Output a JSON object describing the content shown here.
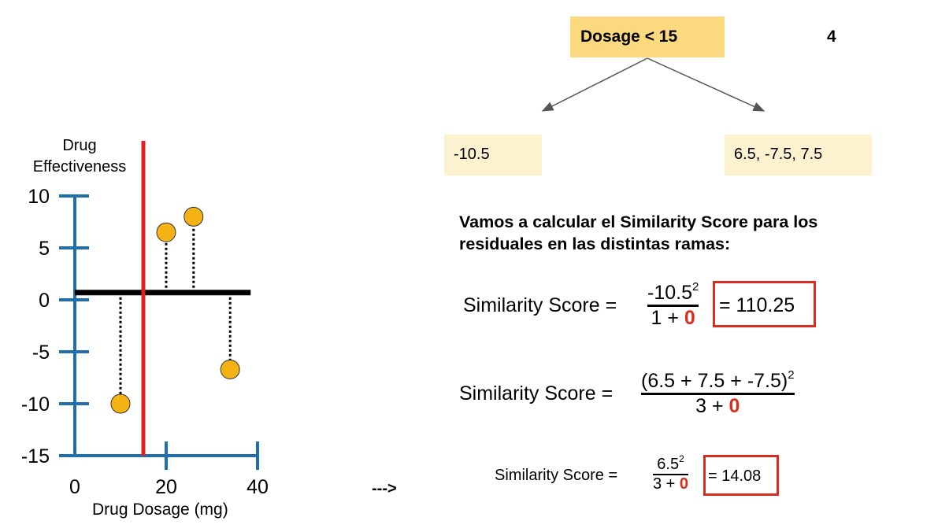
{
  "tree": {
    "root": "Dosage < 15",
    "number": "4",
    "left_leaf": "-10.5",
    "right_leaf": "6.5, -7.5, 7.5"
  },
  "intro_text": "Vamos a calcular el Similarity Score para los residuales en las distintas ramas:",
  "formulas": {
    "f1": {
      "label": "Similarity Score =",
      "num": "-10.5",
      "exp": "2",
      "den_prefix": "1 + ",
      "lambda": "0",
      "result": "= 110.25"
    },
    "f2": {
      "label": "Similarity Score =",
      "num": "(6.5 + 7.5 + -7.5)",
      "exp": "2",
      "den_prefix": "3 + ",
      "lambda": "0"
    },
    "f3": {
      "label": "Similarity Score =",
      "num": "6.5",
      "exp": "2",
      "den_prefix": "3 + ",
      "lambda": "0",
      "result": "= 14.08"
    }
  },
  "arrow_text": "--->",
  "colors": {
    "root_node": "#fcd97e",
    "leaf_node": "#fdf2d0",
    "split_line": "#e02020",
    "axis": "#1f6fae",
    "point": "#f5b214",
    "highlight": "#d92d20"
  },
  "chart_data": {
    "type": "scatter",
    "ylabel": "Drug Effectiveness",
    "xlabel": "Drug Dosage (mg)",
    "xlim": [
      0,
      40
    ],
    "ylim": [
      -15,
      10
    ],
    "x_ticks": [
      "0",
      "20",
      "40"
    ],
    "y_ticks": [
      "10",
      "5",
      "0",
      "-5",
      "-10",
      "-15"
    ],
    "points": [
      {
        "x": 10,
        "y": -10
      },
      {
        "x": 20,
        "y": 6.5
      },
      {
        "x": 26,
        "y": 8
      },
      {
        "x": 34,
        "y": -6.7
      }
    ],
    "baseline_y": 0.7,
    "split_x": 15,
    "grid": false
  }
}
